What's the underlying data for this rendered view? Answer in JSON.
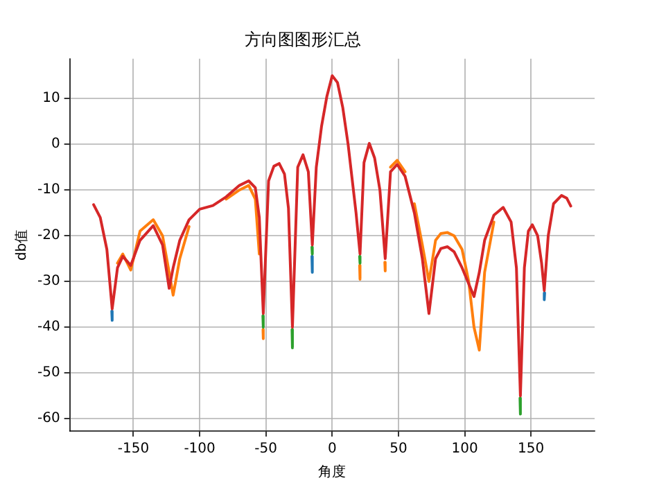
{
  "chart_data": {
    "type": "line",
    "title": "方向图图形汇总",
    "xlabel": "角度",
    "ylabel": "db值",
    "x": [
      -180,
      -175,
      -170,
      -166,
      -162,
      -158,
      -152,
      -145,
      -135,
      -128,
      -123,
      -120,
      -115,
      -108,
      -100,
      -90,
      -80,
      -70,
      -63,
      -58,
      -55,
      -52,
      -48,
      -44,
      -40,
      -36,
      -33,
      -30,
      -26,
      -22,
      -18,
      -15,
      -12,
      -8,
      -4,
      0,
      4,
      8,
      12,
      16,
      18,
      21,
      24,
      28,
      32,
      36,
      40,
      44,
      49,
      55,
      62,
      68,
      73,
      78,
      82,
      87,
      92,
      98,
      103,
      107,
      111,
      115,
      122,
      129,
      135,
      139,
      142,
      145,
      148,
      151,
      155,
      158,
      160,
      163,
      167,
      173,
      177,
      180
    ],
    "series": [
      {
        "color": "#1f77b4",
        "x": [
          -166.3,
          -166,
          -90,
          -15.3,
          -15,
          90,
          160.3,
          160
        ],
        "values": [
          -36.5,
          -38.5,
          null,
          -24.5,
          -28,
          null,
          -32.5,
          -34
        ]
      },
      {
        "color": "#ff7f0e",
        "x": [
          -162,
          -158,
          -152,
          -145,
          -135,
          -128,
          -123,
          -120,
          -115,
          -108,
          -90,
          -80,
          -70,
          -63,
          -58,
          -55,
          -53,
          -52.2,
          -52,
          -45,
          20.7,
          21,
          30,
          39.7,
          40,
          42,
          44,
          49,
          55,
          58,
          62,
          68,
          73,
          78,
          82,
          87,
          92,
          98,
          103,
          107,
          111,
          115,
          122
        ],
        "values": [
          -26,
          -24,
          -27.5,
          -19,
          -16.5,
          -20,
          -28,
          -33,
          -25,
          -18,
          null,
          -12,
          -10,
          -9,
          -12,
          -24,
          null,
          -40.5,
          -42.5,
          null,
          -26.5,
          -29.5,
          null,
          -25.8,
          -27.7,
          null,
          -5,
          -3.5,
          -6,
          null,
          -13,
          -22,
          -30,
          -21,
          -19.5,
          -19.3,
          -20,
          -23,
          -30,
          -40,
          -45,
          -28,
          -17
        ]
      },
      {
        "color": "#2ca02c",
        "x": [
          -52.3,
          -52,
          -45,
          -30.3,
          -30,
          -22,
          -15.3,
          -15,
          0,
          20.7,
          21,
          90,
          141.7,
          142
        ],
        "values": [
          -37.5,
          -40,
          null,
          -40.5,
          -44.5,
          null,
          -22.5,
          -24,
          null,
          -24.5,
          -26,
          null,
          -55.5,
          -59
        ]
      },
      {
        "color": "#d62728",
        "values": [
          -13.2,
          -16,
          -23,
          -36,
          -27,
          -24.5,
          -26.5,
          -21,
          -17.8,
          -22,
          -31.5,
          -27,
          -21,
          -16.5,
          -14.2,
          -13.4,
          -11.5,
          -9,
          -8,
          -9.5,
          -16,
          -37,
          -8,
          -4.8,
          -4.2,
          -6.5,
          -14,
          -40,
          -5,
          -2.3,
          -6,
          -22,
          -5,
          4,
          10.5,
          15,
          13.5,
          8,
          0,
          -10,
          -15,
          -24,
          -4,
          0.2,
          -3,
          -10,
          -25,
          -6,
          -4.4,
          -7,
          -15,
          -25,
          -37,
          -25,
          -22.8,
          -22.4,
          -23.5,
          -27,
          -30.5,
          -33.3,
          -28,
          -21,
          -15.5,
          -13.8,
          -17,
          -27,
          -55,
          -27,
          -19,
          -17.6,
          -20,
          -26,
          -32,
          -20,
          -13,
          -11.2,
          -11.8,
          -13.5
        ]
      }
    ],
    "xlim": [
      -198,
      198
    ],
    "ylim": [
      -62.7,
      18.7
    ],
    "xticks": [
      -150,
      -100,
      -50,
      0,
      50,
      100,
      150
    ],
    "yticks": [
      -60,
      -50,
      -40,
      -30,
      -20,
      -10,
      0,
      10
    ],
    "grid": true
  }
}
